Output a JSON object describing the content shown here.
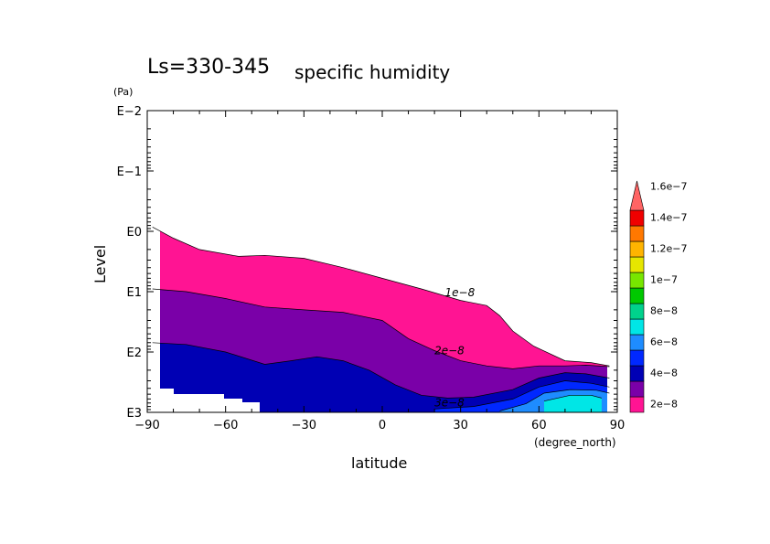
{
  "chart_data": {
    "type": "contour",
    "title_main": "Ls=330-345",
    "title_sub": "specific humidity",
    "xlabel": "latitude",
    "xunits": "(degree_north)",
    "ylabel": "Level",
    "yunits": "(Pa)",
    "xlim": [
      -90,
      90
    ],
    "ylim": [
      1000,
      0.01
    ],
    "yscale": "log",
    "x_ticks": [
      -90,
      -60,
      -30,
      0,
      30,
      60,
      90
    ],
    "x_tick_labels": [
      "−90",
      "−60",
      "−30",
      "0",
      "30",
      "60",
      "90"
    ],
    "y_ticks": [
      0.01,
      0.1,
      1,
      10,
      100,
      1000
    ],
    "y_tick_labels": [
      "E−2",
      "E−1",
      "E0",
      "E1",
      "E2",
      "E3"
    ],
    "contour_labels": [
      {
        "text": "1e−8",
        "lat": 24,
        "level": 12
      },
      {
        "text": "2e−8",
        "lat": 20,
        "level": 110
      },
      {
        "text": "3e−8",
        "lat": 20,
        "level": 800
      }
    ],
    "colorbar": {
      "labels": [
        "2e−8",
        "4e−8",
        "6e−8",
        "8e−8",
        "1e−7",
        "1.2e−7",
        "1.4e−7",
        "1.6e−7"
      ],
      "colors": [
        "#ff1493",
        "#7a00a8",
        "#0000b4",
        "#0028ff",
        "#1e8cff",
        "#00e6e6",
        "#00d28c",
        "#00c800",
        "#78e600",
        "#e6e600",
        "#ffb400",
        "#ff7800",
        "#f00000",
        "#ff6464"
      ]
    },
    "fill_colors": {
      "band1": "#ff1493",
      "band2": "#7a00a8",
      "band3": "#0000b4",
      "band4": "#0028ff",
      "band5": "#1e8cff",
      "band6": "#00e6e6"
    },
    "regions": [
      {
        "band": "band1",
        "top": [
          [
            -88,
            0.85
          ],
          [
            -80,
            1.3
          ],
          [
            -70,
            2
          ],
          [
            -55,
            2.6
          ],
          [
            -45,
            2.5
          ],
          [
            -30,
            2.8
          ],
          [
            -15,
            4
          ],
          [
            0,
            6
          ],
          [
            15,
            9
          ],
          [
            30,
            14
          ],
          [
            40,
            17
          ],
          [
            45,
            25
          ],
          [
            50,
            45
          ],
          [
            58,
            80
          ],
          [
            70,
            140
          ],
          [
            80,
            150
          ],
          [
            87,
            170
          ]
        ]
      },
      {
        "band": "band2",
        "top": [
          [
            -88,
            9
          ],
          [
            -75,
            10
          ],
          [
            -60,
            13
          ],
          [
            -45,
            18
          ],
          [
            -30,
            20
          ],
          [
            -15,
            22
          ],
          [
            0,
            30
          ],
          [
            10,
            60
          ],
          [
            20,
            95
          ],
          [
            30,
            140
          ],
          [
            40,
            170
          ],
          [
            50,
            190
          ],
          [
            60,
            170
          ],
          [
            70,
            170
          ],
          [
            78,
            165
          ],
          [
            87,
            175
          ]
        ]
      },
      {
        "band": "band3",
        "top": [
          [
            -88,
            70
          ],
          [
            -75,
            75
          ],
          [
            -60,
            100
          ],
          [
            -45,
            160
          ],
          [
            -35,
            140
          ],
          [
            -25,
            120
          ],
          [
            -15,
            140
          ],
          [
            -5,
            200
          ],
          [
            5,
            350
          ],
          [
            15,
            520
          ],
          [
            25,
            580
          ],
          [
            35,
            560
          ],
          [
            50,
            420
          ],
          [
            60,
            270
          ],
          [
            70,
            220
          ],
          [
            78,
            230
          ],
          [
            87,
            270
          ]
        ]
      },
      {
        "band": "band4",
        "top": [
          [
            20,
            880
          ],
          [
            35,
            800
          ],
          [
            50,
            600
          ],
          [
            60,
            380
          ],
          [
            70,
            300
          ],
          [
            80,
            330
          ],
          [
            87,
            380
          ]
        ]
      },
      {
        "band": "band5",
        "top": [
          [
            45,
            950
          ],
          [
            55,
            720
          ],
          [
            62,
            480
          ],
          [
            72,
            420
          ],
          [
            82,
            430
          ],
          [
            87,
            480
          ]
        ]
      },
      {
        "band": "band6",
        "top": [
          [
            62,
            650
          ],
          [
            72,
            520
          ],
          [
            80,
            520
          ],
          [
            84,
            580
          ]
        ]
      }
    ]
  }
}
